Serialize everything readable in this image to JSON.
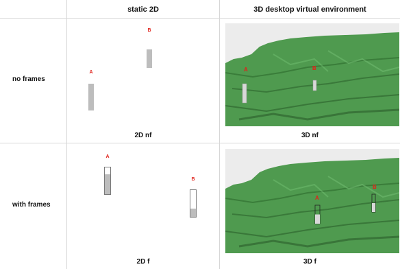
{
  "columns": {
    "static": "static 2D",
    "virtual": "3D desktop virtual environment"
  },
  "rows": {
    "no_frames": "no frames",
    "with_frames": "with frames"
  },
  "captions": {
    "c2d_nf": "2D nf",
    "c3d_nf": "3D nf",
    "c2d_f": "2D f",
    "c3d_f": "3D f"
  },
  "markers": {
    "a": "A",
    "b": "B"
  },
  "proportions": {
    "2d_f_A": 0.75,
    "2d_f_B": 0.3,
    "3d_f_A": 0.5,
    "3d_f_B": 0.5
  },
  "colors": {
    "terrain": "#4f9a4f",
    "marker_label": "#e0221b",
    "bar_fill": "#bdbdbd",
    "grid_line": "#d7d7d7"
  }
}
